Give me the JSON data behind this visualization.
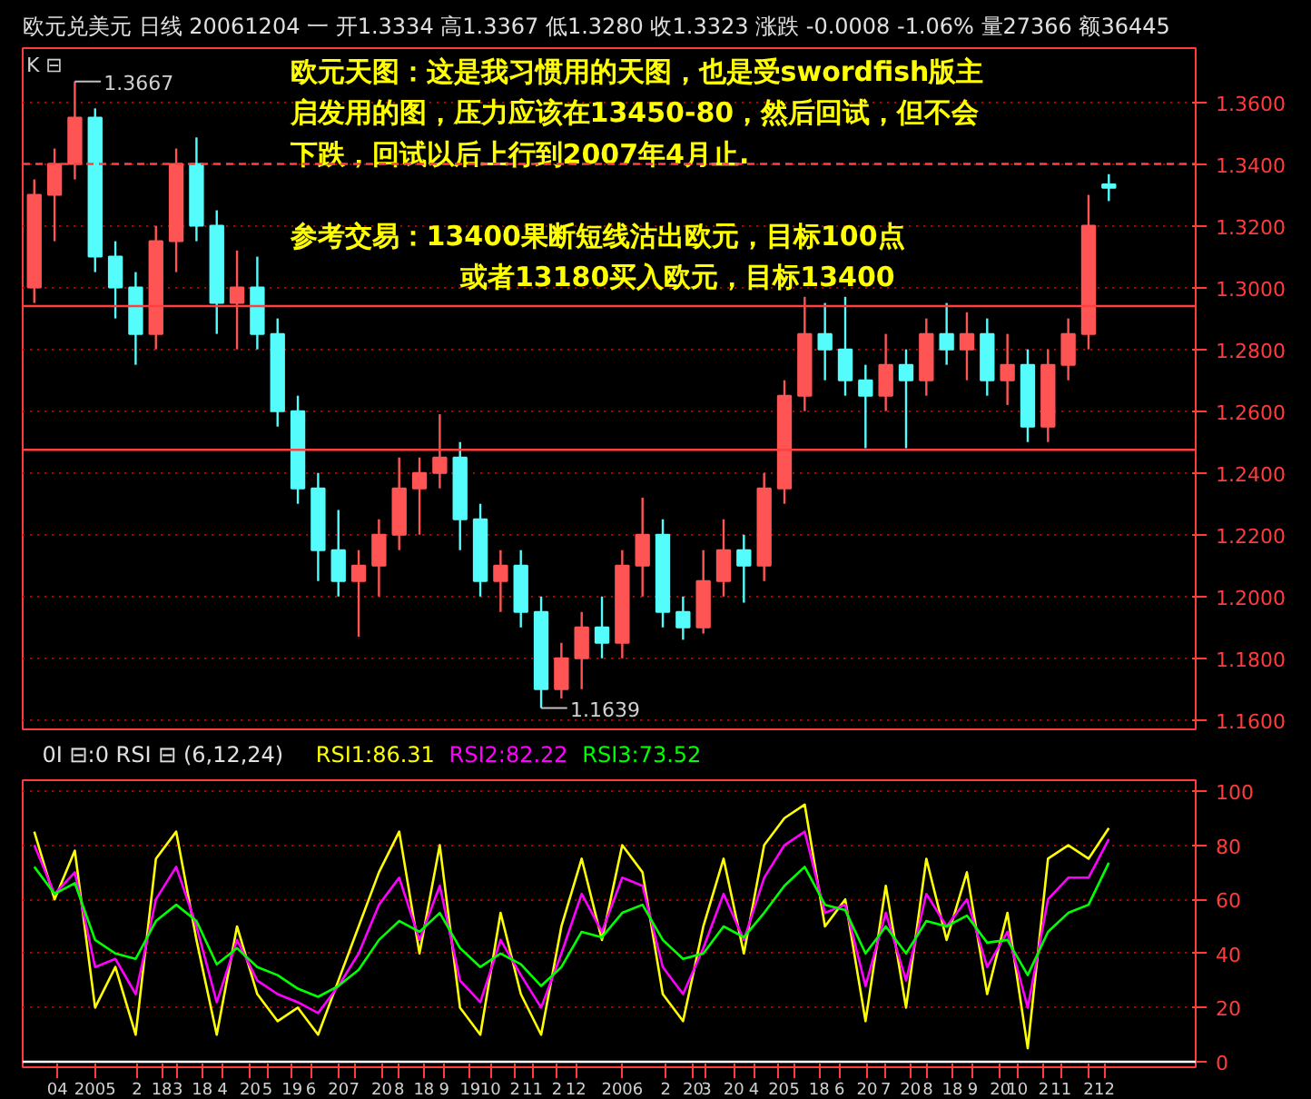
{
  "chart_data": [
    {
      "type": "candlestick",
      "title": "欧元兑美元 日线 20061204 一 开1.3334 高1.3367 低1.3280 收1.3323 涨跌 -0.0008 -1.06% 量27366 额36445",
      "x": [
        "2004-11-22",
        "2004-12-06",
        "2004-12-20",
        "2005-01-03",
        "2005-01-17",
        "2005-01-31",
        "2005-02-14",
        "2005-02-28",
        "2005-03-14",
        "2005-03-28",
        "2005-04-11",
        "2005-04-25",
        "2005-05-09",
        "2005-05-23",
        "2005-06-06",
        "2005-06-20",
        "2005-07-04",
        "2005-07-18",
        "2005-08-01",
        "2005-08-15",
        "2005-08-29",
        "2005-09-12",
        "2005-09-26",
        "2005-10-10",
        "2005-10-24",
        "2005-11-07",
        "2005-11-21",
        "2005-12-05",
        "2005-12-19",
        "2006-01-02",
        "2006-01-16",
        "2006-01-30",
        "2006-02-13",
        "2006-02-27",
        "2006-03-13",
        "2006-03-27",
        "2006-04-10",
        "2006-04-24",
        "2006-05-08",
        "2006-05-22",
        "2006-06-05",
        "2006-06-19",
        "2006-07-03",
        "2006-07-17",
        "2006-07-31",
        "2006-08-14",
        "2006-08-28",
        "2006-09-11",
        "2006-09-25",
        "2006-10-09",
        "2006-10-23",
        "2006-11-06",
        "2006-11-20",
        "2006-12-04"
      ],
      "ohlc": [
        [
          1.3,
          1.335,
          1.295,
          1.33
        ],
        [
          1.33,
          1.345,
          1.315,
          1.34
        ],
        [
          1.34,
          1.3667,
          1.335,
          1.355
        ],
        [
          1.355,
          1.358,
          1.305,
          1.31
        ],
        [
          1.31,
          1.315,
          1.29,
          1.3
        ],
        [
          1.3,
          1.305,
          1.275,
          1.285
        ],
        [
          1.285,
          1.32,
          1.28,
          1.315
        ],
        [
          1.315,
          1.345,
          1.305,
          1.34
        ],
        [
          1.34,
          1.3486,
          1.315,
          1.32
        ],
        [
          1.32,
          1.325,
          1.285,
          1.295
        ],
        [
          1.295,
          1.312,
          1.28,
          1.3
        ],
        [
          1.3,
          1.31,
          1.28,
          1.285
        ],
        [
          1.285,
          1.29,
          1.255,
          1.26
        ],
        [
          1.26,
          1.265,
          1.23,
          1.235
        ],
        [
          1.235,
          1.24,
          1.205,
          1.215
        ],
        [
          1.215,
          1.228,
          1.2,
          1.205
        ],
        [
          1.205,
          1.215,
          1.187,
          1.21
        ],
        [
          1.21,
          1.225,
          1.2,
          1.22
        ],
        [
          1.22,
          1.245,
          1.215,
          1.235
        ],
        [
          1.235,
          1.245,
          1.22,
          1.24
        ],
        [
          1.24,
          1.259,
          1.235,
          1.245
        ],
        [
          1.245,
          1.25,
          1.215,
          1.225
        ],
        [
          1.225,
          1.23,
          1.2,
          1.205
        ],
        [
          1.205,
          1.215,
          1.195,
          1.21
        ],
        [
          1.21,
          1.215,
          1.19,
          1.195
        ],
        [
          1.195,
          1.2,
          1.1639,
          1.17
        ],
        [
          1.17,
          1.185,
          1.167,
          1.18
        ],
        [
          1.18,
          1.195,
          1.17,
          1.19
        ],
        [
          1.19,
          1.2,
          1.18,
          1.185
        ],
        [
          1.185,
          1.215,
          1.18,
          1.21
        ],
        [
          1.21,
          1.232,
          1.2,
          1.22
        ],
        [
          1.22,
          1.225,
          1.19,
          1.195
        ],
        [
          1.195,
          1.2,
          1.186,
          1.19
        ],
        [
          1.19,
          1.215,
          1.188,
          1.205
        ],
        [
          1.205,
          1.225,
          1.2,
          1.215
        ],
        [
          1.215,
          1.22,
          1.198,
          1.21
        ],
        [
          1.21,
          1.24,
          1.205,
          1.235
        ],
        [
          1.235,
          1.27,
          1.23,
          1.265
        ],
        [
          1.265,
          1.297,
          1.26,
          1.285
        ],
        [
          1.285,
          1.295,
          1.27,
          1.28
        ],
        [
          1.28,
          1.297,
          1.265,
          1.27
        ],
        [
          1.27,
          1.275,
          1.248,
          1.265
        ],
        [
          1.265,
          1.285,
          1.26,
          1.275
        ],
        [
          1.275,
          1.28,
          1.248,
          1.27
        ],
        [
          1.27,
          1.29,
          1.265,
          1.285
        ],
        [
          1.285,
          1.295,
          1.275,
          1.28
        ],
        [
          1.28,
          1.292,
          1.27,
          1.285
        ],
        [
          1.285,
          1.29,
          1.265,
          1.27
        ],
        [
          1.27,
          1.285,
          1.262,
          1.275
        ],
        [
          1.275,
          1.28,
          1.25,
          1.255
        ],
        [
          1.255,
          1.28,
          1.25,
          1.275
        ],
        [
          1.275,
          1.29,
          1.27,
          1.285
        ],
        [
          1.285,
          1.33,
          1.28,
          1.32
        ],
        [
          1.3334,
          1.3367,
          1.328,
          1.3323
        ]
      ],
      "colors": [
        "#ff5454",
        "#ff5454",
        "#ff5454",
        "#54fcfc",
        "#54fcfc",
        "#54fcfc",
        "#ff5454",
        "#ff5454",
        "#54fcfc",
        "#54fcfc",
        "#ff5454",
        "#54fcfc",
        "#54fcfc",
        "#54fcfc",
        "#54fcfc",
        "#54fcfc",
        "#ff5454",
        "#ff5454",
        "#ff5454",
        "#ff5454",
        "#ff5454",
        "#54fcfc",
        "#54fcfc",
        "#ff5454",
        "#54fcfc",
        "#54fcfc",
        "#ff5454",
        "#ff5454",
        "#54fcfc",
        "#ff5454",
        "#ff5454",
        "#54fcfc",
        "#54fcfc",
        "#ff5454",
        "#ff5454",
        "#54fcfc",
        "#ff5454",
        "#ff5454",
        "#ff5454",
        "#54fcfc",
        "#54fcfc",
        "#54fcfc",
        "#ff5454",
        "#54fcfc",
        "#ff5454",
        "#54fcfc",
        "#ff5454",
        "#54fcfc",
        "#ff5454",
        "#54fcfc",
        "#ff5454",
        "#ff5454",
        "#ff5454",
        "#54fcfc"
      ],
      "xlim": [
        "2004-11-14",
        "2007-02-02"
      ],
      "ylim": [
        1.157,
        1.3775
      ],
      "yticks": [
        {
          "value": 1.16,
          "label": "1.1600"
        },
        {
          "value": 1.18,
          "label": "1.1800"
        },
        {
          "value": 1.2,
          "label": "1.2000"
        },
        {
          "value": 1.22,
          "label": "1.2200"
        },
        {
          "value": 1.24,
          "label": "1.2400"
        },
        {
          "value": 1.26,
          "label": "1.2600"
        },
        {
          "value": 1.28,
          "label": "1.2800"
        },
        {
          "value": 1.3,
          "label": "1.3000"
        },
        {
          "value": 1.32,
          "label": "1.3200"
        },
        {
          "value": 1.34,
          "label": "1.3400"
        },
        {
          "value": 1.36,
          "label": "1.3600"
        }
      ],
      "grid": "y",
      "tick_labels": "y",
      "ref_lines": [
        {
          "axis": "y",
          "value": 1.294,
          "color": "#ff4040"
        },
        {
          "axis": "y",
          "value": 1.2475,
          "color": "#ff4040"
        },
        {
          "axis": "y",
          "value": 1.34,
          "color": "#ff4040",
          "line_style": "dashed"
        }
      ],
      "annotations": [
        {
          "text": "1.3667",
          "x": "2004-12-20",
          "y": 1.3667
        },
        {
          "text": "1.1639",
          "x": "2005-11-07",
          "y": 1.1639
        },
        "K ⊟",
        "欧元天图：这是我习惯用的天图，也是受swordfish版主",
        "启发用的图，压力应该在13450-80，然后回试，但不会",
        "下跌，回试以后上行到2007年4月止.",
        "参考交易：13400果断短线沽出欧元，目标100点",
        "或者13180买入欧元，目标13400"
      ]
    },
    {
      "type": "line",
      "title": "0I ⊟:0 RSI ⊟ (6,12,24)",
      "legend": "top left",
      "x": [
        "2004-11-22",
        "2004-12-06",
        "2004-12-20",
        "2005-01-03",
        "2005-01-17",
        "2005-01-31",
        "2005-02-14",
        "2005-02-28",
        "2005-03-14",
        "2005-03-28",
        "2005-04-11",
        "2005-04-25",
        "2005-05-09",
        "2005-05-23",
        "2005-06-06",
        "2005-06-20",
        "2005-07-04",
        "2005-07-18",
        "2005-08-01",
        "2005-08-15",
        "2005-08-29",
        "2005-09-12",
        "2005-09-26",
        "2005-10-10",
        "2005-10-24",
        "2005-11-07",
        "2005-11-21",
        "2005-12-05",
        "2005-12-19",
        "2006-01-02",
        "2006-01-16",
        "2006-01-30",
        "2006-02-13",
        "2006-02-27",
        "2006-03-13",
        "2006-03-27",
        "2006-04-10",
        "2006-04-24",
        "2006-05-08",
        "2006-05-22",
        "2006-06-05",
        "2006-06-19",
        "2006-07-03",
        "2006-07-17",
        "2006-07-31",
        "2006-08-14",
        "2006-08-28",
        "2006-09-11",
        "2006-09-25",
        "2006-10-09",
        "2006-10-23",
        "2006-11-06",
        "2006-11-20",
        "2006-12-04"
      ],
      "series": [
        {
          "name": "RSI1:86.31",
          "color": "#ffff00",
          "values": [
            85,
            60,
            78,
            20,
            35,
            10,
            75,
            85,
            45,
            10,
            50,
            25,
            15,
            20,
            10,
            30,
            50,
            70,
            85,
            40,
            80,
            20,
            10,
            55,
            25,
            10,
            50,
            75,
            45,
            80,
            70,
            25,
            15,
            50,
            75,
            40,
            80,
            90,
            95,
            50,
            60,
            15,
            65,
            20,
            75,
            45,
            70,
            25,
            55,
            5,
            75,
            80,
            75,
            86.31
          ]
        },
        {
          "name": "RSI2:82.22",
          "color": "#ff00ff",
          "values": [
            80,
            62,
            70,
            35,
            38,
            25,
            60,
            72,
            50,
            22,
            45,
            30,
            25,
            22,
            18,
            28,
            40,
            58,
            68,
            45,
            65,
            30,
            22,
            45,
            32,
            20,
            40,
            62,
            48,
            68,
            65,
            35,
            25,
            42,
            62,
            45,
            68,
            80,
            85,
            55,
            58,
            28,
            55,
            30,
            62,
            50,
            60,
            35,
            48,
            20,
            60,
            68,
            68,
            82.22
          ]
        },
        {
          "name": "RSI3:73.52",
          "color": "#00ff00",
          "values": [
            72,
            62,
            66,
            45,
            40,
            38,
            52,
            58,
            52,
            36,
            42,
            35,
            32,
            27,
            24,
            28,
            34,
            45,
            52,
            48,
            55,
            42,
            35,
            40,
            36,
            28,
            35,
            48,
            46,
            55,
            58,
            45,
            38,
            40,
            50,
            46,
            55,
            65,
            72,
            58,
            56,
            40,
            50,
            40,
            52,
            50,
            54,
            44,
            45,
            32,
            48,
            55,
            58,
            73.52
          ]
        }
      ],
      "xlim": [
        "2004-11-14",
        "2007-02-02"
      ],
      "ylim": [
        -2,
        104
      ],
      "yticks": [
        0,
        20,
        40,
        60,
        80,
        100
      ],
      "xticks": [
        {
          "value": "2004-12-08",
          "label": "04"
        },
        {
          "value": "2005-01-03",
          "label": "2005"
        },
        {
          "value": "2005-02-01",
          "label": "2"
        },
        {
          "value": "2005-02-18",
          "label": "18"
        },
        {
          "value": "2005-03-01",
          "label": "3"
        },
        {
          "value": "2005-03-18",
          "label": "18"
        },
        {
          "value": "2005-04-01",
          "label": "4"
        },
        {
          "value": "2005-04-20",
          "label": "20"
        },
        {
          "value": "2005-05-02",
          "label": "5"
        },
        {
          "value": "2005-05-19",
          "label": "19"
        },
        {
          "value": "2005-06-01",
          "label": "6"
        },
        {
          "value": "2005-06-20",
          "label": "20"
        },
        {
          "value": "2005-07-01",
          "label": "7"
        },
        {
          "value": "2005-07-20",
          "label": "20"
        },
        {
          "value": "2005-08-01",
          "label": "8"
        },
        {
          "value": "2005-08-18",
          "label": "18"
        },
        {
          "value": "2005-09-01",
          "label": "9"
        },
        {
          "value": "2005-09-19",
          "label": "19"
        },
        {
          "value": "2005-10-03",
          "label": "10"
        },
        {
          "value": "2005-10-20",
          "label": "2"
        },
        {
          "value": "2005-11-01",
          "label": "11"
        },
        {
          "value": "2005-11-18",
          "label": "2"
        },
        {
          "value": "2005-12-01",
          "label": "12"
        },
        {
          "value": "2006-01-02",
          "label": "2006"
        },
        {
          "value": "2006-02-01",
          "label": "2"
        },
        {
          "value": "2006-02-20",
          "label": "20"
        },
        {
          "value": "2006-03-01",
          "label": "3"
        },
        {
          "value": "2006-03-20",
          "label": "20"
        },
        {
          "value": "2006-04-03",
          "label": "4"
        },
        {
          "value": "2006-04-20",
          "label": "20"
        },
        {
          "value": "2006-05-01",
          "label": "5"
        },
        {
          "value": "2006-05-18",
          "label": "18"
        },
        {
          "value": "2006-06-01",
          "label": "6"
        },
        {
          "value": "2006-06-20",
          "label": "20"
        },
        {
          "value": "2006-07-03",
          "label": "7"
        },
        {
          "value": "2006-07-20",
          "label": "20"
        },
        {
          "value": "2006-08-01",
          "label": "8"
        },
        {
          "value": "2006-08-18",
          "label": "18"
        },
        {
          "value": "2006-09-01",
          "label": "9"
        },
        {
          "value": "2006-09-20",
          "label": "20"
        },
        {
          "value": "2006-10-02",
          "label": "10"
        },
        {
          "value": "2006-10-20",
          "label": "2"
        },
        {
          "value": "2006-11-01",
          "label": "11"
        },
        {
          "value": "2006-11-20",
          "label": "2"
        },
        {
          "value": "2006-12-01",
          "label": "12"
        }
      ],
      "grid": "y",
      "ref_lines": [
        {
          "axis": "y",
          "value": 0,
          "color": "#ffffff"
        }
      ]
    }
  ]
}
